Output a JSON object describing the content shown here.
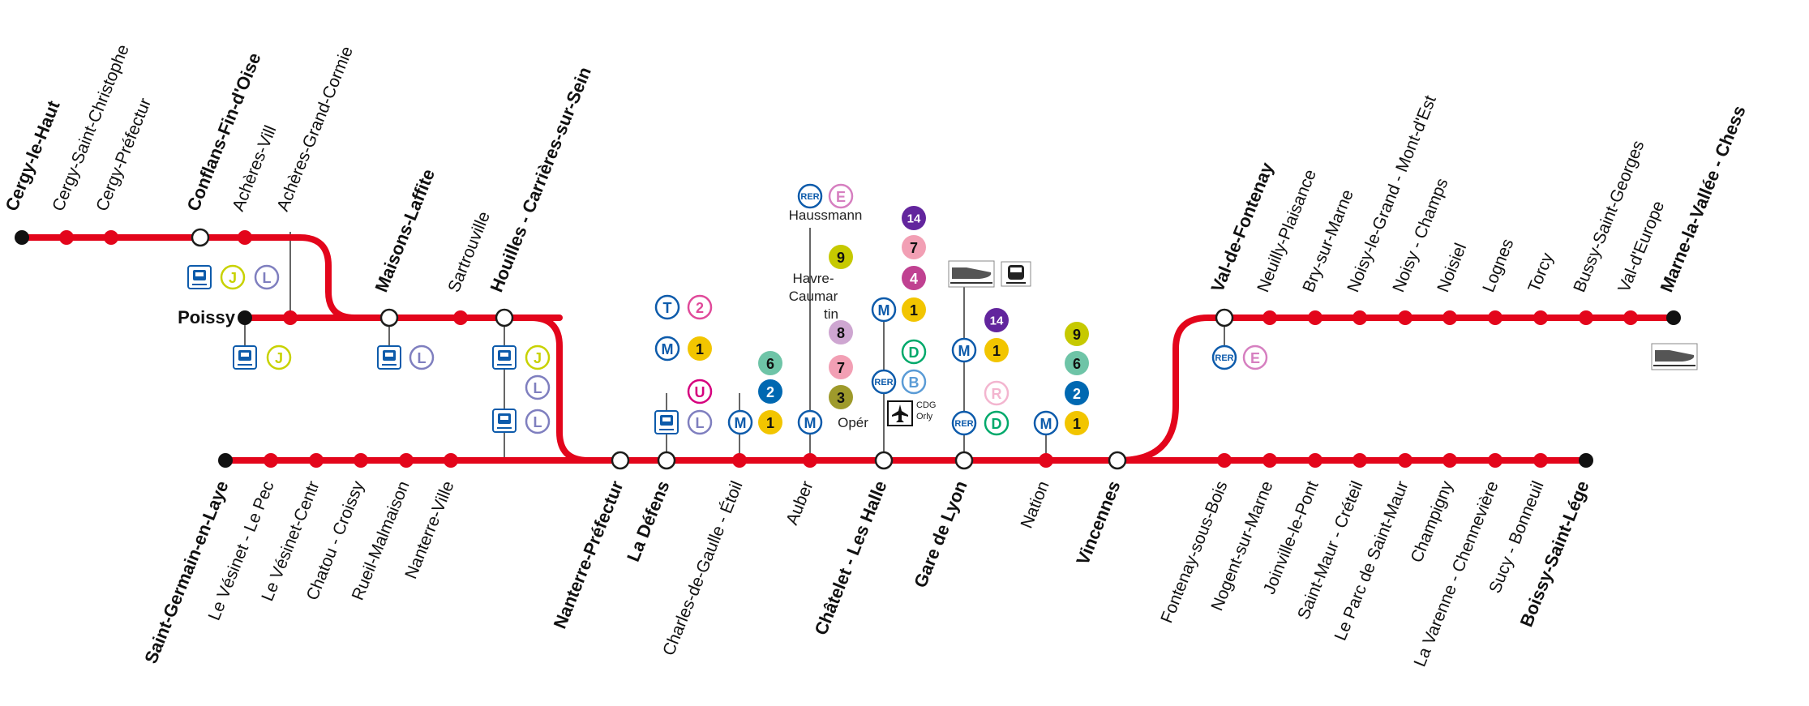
{
  "colors": {
    "line": "#e3051b",
    "stroke_dark": "#1d1d1b",
    "metro_blue": "#0d5bab"
  },
  "stations": [
    {
      "name": "Cergy-le-Haut",
      "bold": true,
      "type": "terminus"
    },
    {
      "name": "Cergy-Saint-Christophe",
      "bold": false,
      "type": "stop"
    },
    {
      "name": "Cergy-Préfectur",
      "bold": false,
      "type": "stop"
    },
    {
      "name": "Conflans-Fin-d'Oise",
      "bold": true,
      "type": "interchange"
    },
    {
      "name": "Achères-Vill",
      "bold": false,
      "type": "stop"
    },
    {
      "name": "Achères-Grand-Cormie",
      "bold": false,
      "type": "stop"
    },
    {
      "name": "Poissy",
      "bold": true,
      "type": "terminus"
    },
    {
      "name": "Maisons-Laffite",
      "bold": true,
      "type": "interchange"
    },
    {
      "name": "Sartrouville",
      "bold": false,
      "type": "stop"
    },
    {
      "name": "Houilles - Carrières-sur-Sein",
      "bold": true,
      "type": "interchange"
    },
    {
      "name": "Saint-Germain-en-Laye",
      "bold": true,
      "type": "terminus"
    },
    {
      "name": "Le Vésinet - Le Pec",
      "bold": false,
      "type": "stop"
    },
    {
      "name": "Le Vésinet-Centr",
      "bold": false,
      "type": "stop"
    },
    {
      "name": "Chatou - Croissy",
      "bold": false,
      "type": "stop"
    },
    {
      "name": "Rueil-Malmaison",
      "bold": false,
      "type": "stop"
    },
    {
      "name": "Nanterre-Ville",
      "bold": false,
      "type": "stop"
    },
    {
      "name": "Nanterre-Préfectur",
      "bold": true,
      "type": "interchange"
    },
    {
      "name": "La Défens",
      "bold": true,
      "type": "interchange"
    },
    {
      "name": "Charles-de-Gaulle - Étoil",
      "bold": false,
      "type": "stop"
    },
    {
      "name": "Auber",
      "bold": false,
      "type": "stop"
    },
    {
      "name": "Châtelet - Les Halle",
      "bold": true,
      "type": "interchange"
    },
    {
      "name": "Gare de Lyon",
      "bold": true,
      "type": "interchange"
    },
    {
      "name": "Nation",
      "bold": false,
      "type": "stop"
    },
    {
      "name": "Vincennes",
      "bold": true,
      "type": "interchange"
    },
    {
      "name": "Fontenay-sous-Bois",
      "bold": false,
      "type": "stop"
    },
    {
      "name": "Nogent-sur-Marne",
      "bold": false,
      "type": "stop"
    },
    {
      "name": "Joinville-le-Pont",
      "bold": false,
      "type": "stop"
    },
    {
      "name": "Saint-Maur - Créteil",
      "bold": false,
      "type": "stop"
    },
    {
      "name": "Le Parc de Saint-Maur",
      "bold": false,
      "type": "stop"
    },
    {
      "name": "Champigny",
      "bold": false,
      "type": "stop"
    },
    {
      "name": "La Varenne - Chennevière",
      "bold": false,
      "type": "stop"
    },
    {
      "name": "Sucy - Bonneuil",
      "bold": false,
      "type": "stop"
    },
    {
      "name": "Boissy-Saint-Lége",
      "bold": true,
      "type": "terminus"
    },
    {
      "name": "Val-de-Fontenay",
      "bold": true,
      "type": "interchange"
    },
    {
      "name": "Neuilly-Plaisance",
      "bold": false,
      "type": "stop"
    },
    {
      "name": "Bry-sur-Marne",
      "bold": false,
      "type": "stop"
    },
    {
      "name": "Noisy-le-Grand - Mont-d'Est",
      "bold": false,
      "type": "stop"
    },
    {
      "name": "Noisy - Champs",
      "bold": false,
      "type": "stop"
    },
    {
      "name": "Noisiel",
      "bold": false,
      "type": "stop"
    },
    {
      "name": "Lognes",
      "bold": false,
      "type": "stop"
    },
    {
      "name": "Torcy",
      "bold": false,
      "type": "stop"
    },
    {
      "name": "Bussy-Saint-Georges",
      "bold": false,
      "type": "stop"
    },
    {
      "name": "Val-d'Europe",
      "bold": false,
      "type": "stop"
    },
    {
      "name": "Marne-la-Vallée - Chess",
      "bold": true,
      "type": "terminus"
    }
  ],
  "badges": [
    {
      "text": "J",
      "color": "#c8d200",
      "style": "outline"
    },
    {
      "text": "L",
      "color": "#7f7fbf",
      "style": "outline"
    },
    {
      "text": "T",
      "color": "#0d5bab",
      "style": "outline"
    },
    {
      "text": "2",
      "color": "#e04a9a",
      "style": "outline"
    },
    {
      "text": "M",
      "color": "#0d5bab",
      "style": "outline"
    },
    {
      "text": "1",
      "color": "#f2c500",
      "style": "filled"
    },
    {
      "text": "U",
      "color": "#d6007e",
      "style": "outline"
    },
    {
      "text": "6",
      "color": "#6ec4a7",
      "style": "filled"
    },
    {
      "text": "2",
      "color": "#0068b1",
      "style": "filled"
    },
    {
      "text": "RER",
      "color": "#0d5bab",
      "style": "outline"
    },
    {
      "text": "E",
      "color": "#d67fc0",
      "style": "outline"
    },
    {
      "text": "9",
      "color": "#c6c900",
      "style": "filled"
    },
    {
      "text": "8",
      "color": "#cea6d1",
      "style": "filled"
    },
    {
      "text": "7",
      "color": "#f29fb4",
      "style": "filled"
    },
    {
      "text": "3",
      "color": "#9e9a2b",
      "style": "filled"
    },
    {
      "text": "14",
      "color": "#62259d",
      "style": "filled"
    },
    {
      "text": "4",
      "color": "#c04191",
      "style": "filled"
    },
    {
      "text": "D",
      "color": "#00a96b",
      "style": "outline"
    },
    {
      "text": "B",
      "color": "#5a9bd6",
      "style": "outline"
    },
    {
      "text": "R",
      "color": "#f3b5cf",
      "style": "outline"
    }
  ],
  "labels": {
    "haussmann": "Haussmann",
    "havre_1": "Havre-",
    "havre_2": "Caumar",
    "havre_3": "tin",
    "opera": "Opér",
    "cdg": "CDG",
    "orly": "Orly"
  },
  "icons": [
    "train-icon",
    "tgv-icon",
    "airplane-icon",
    "transilien-icon"
  ]
}
